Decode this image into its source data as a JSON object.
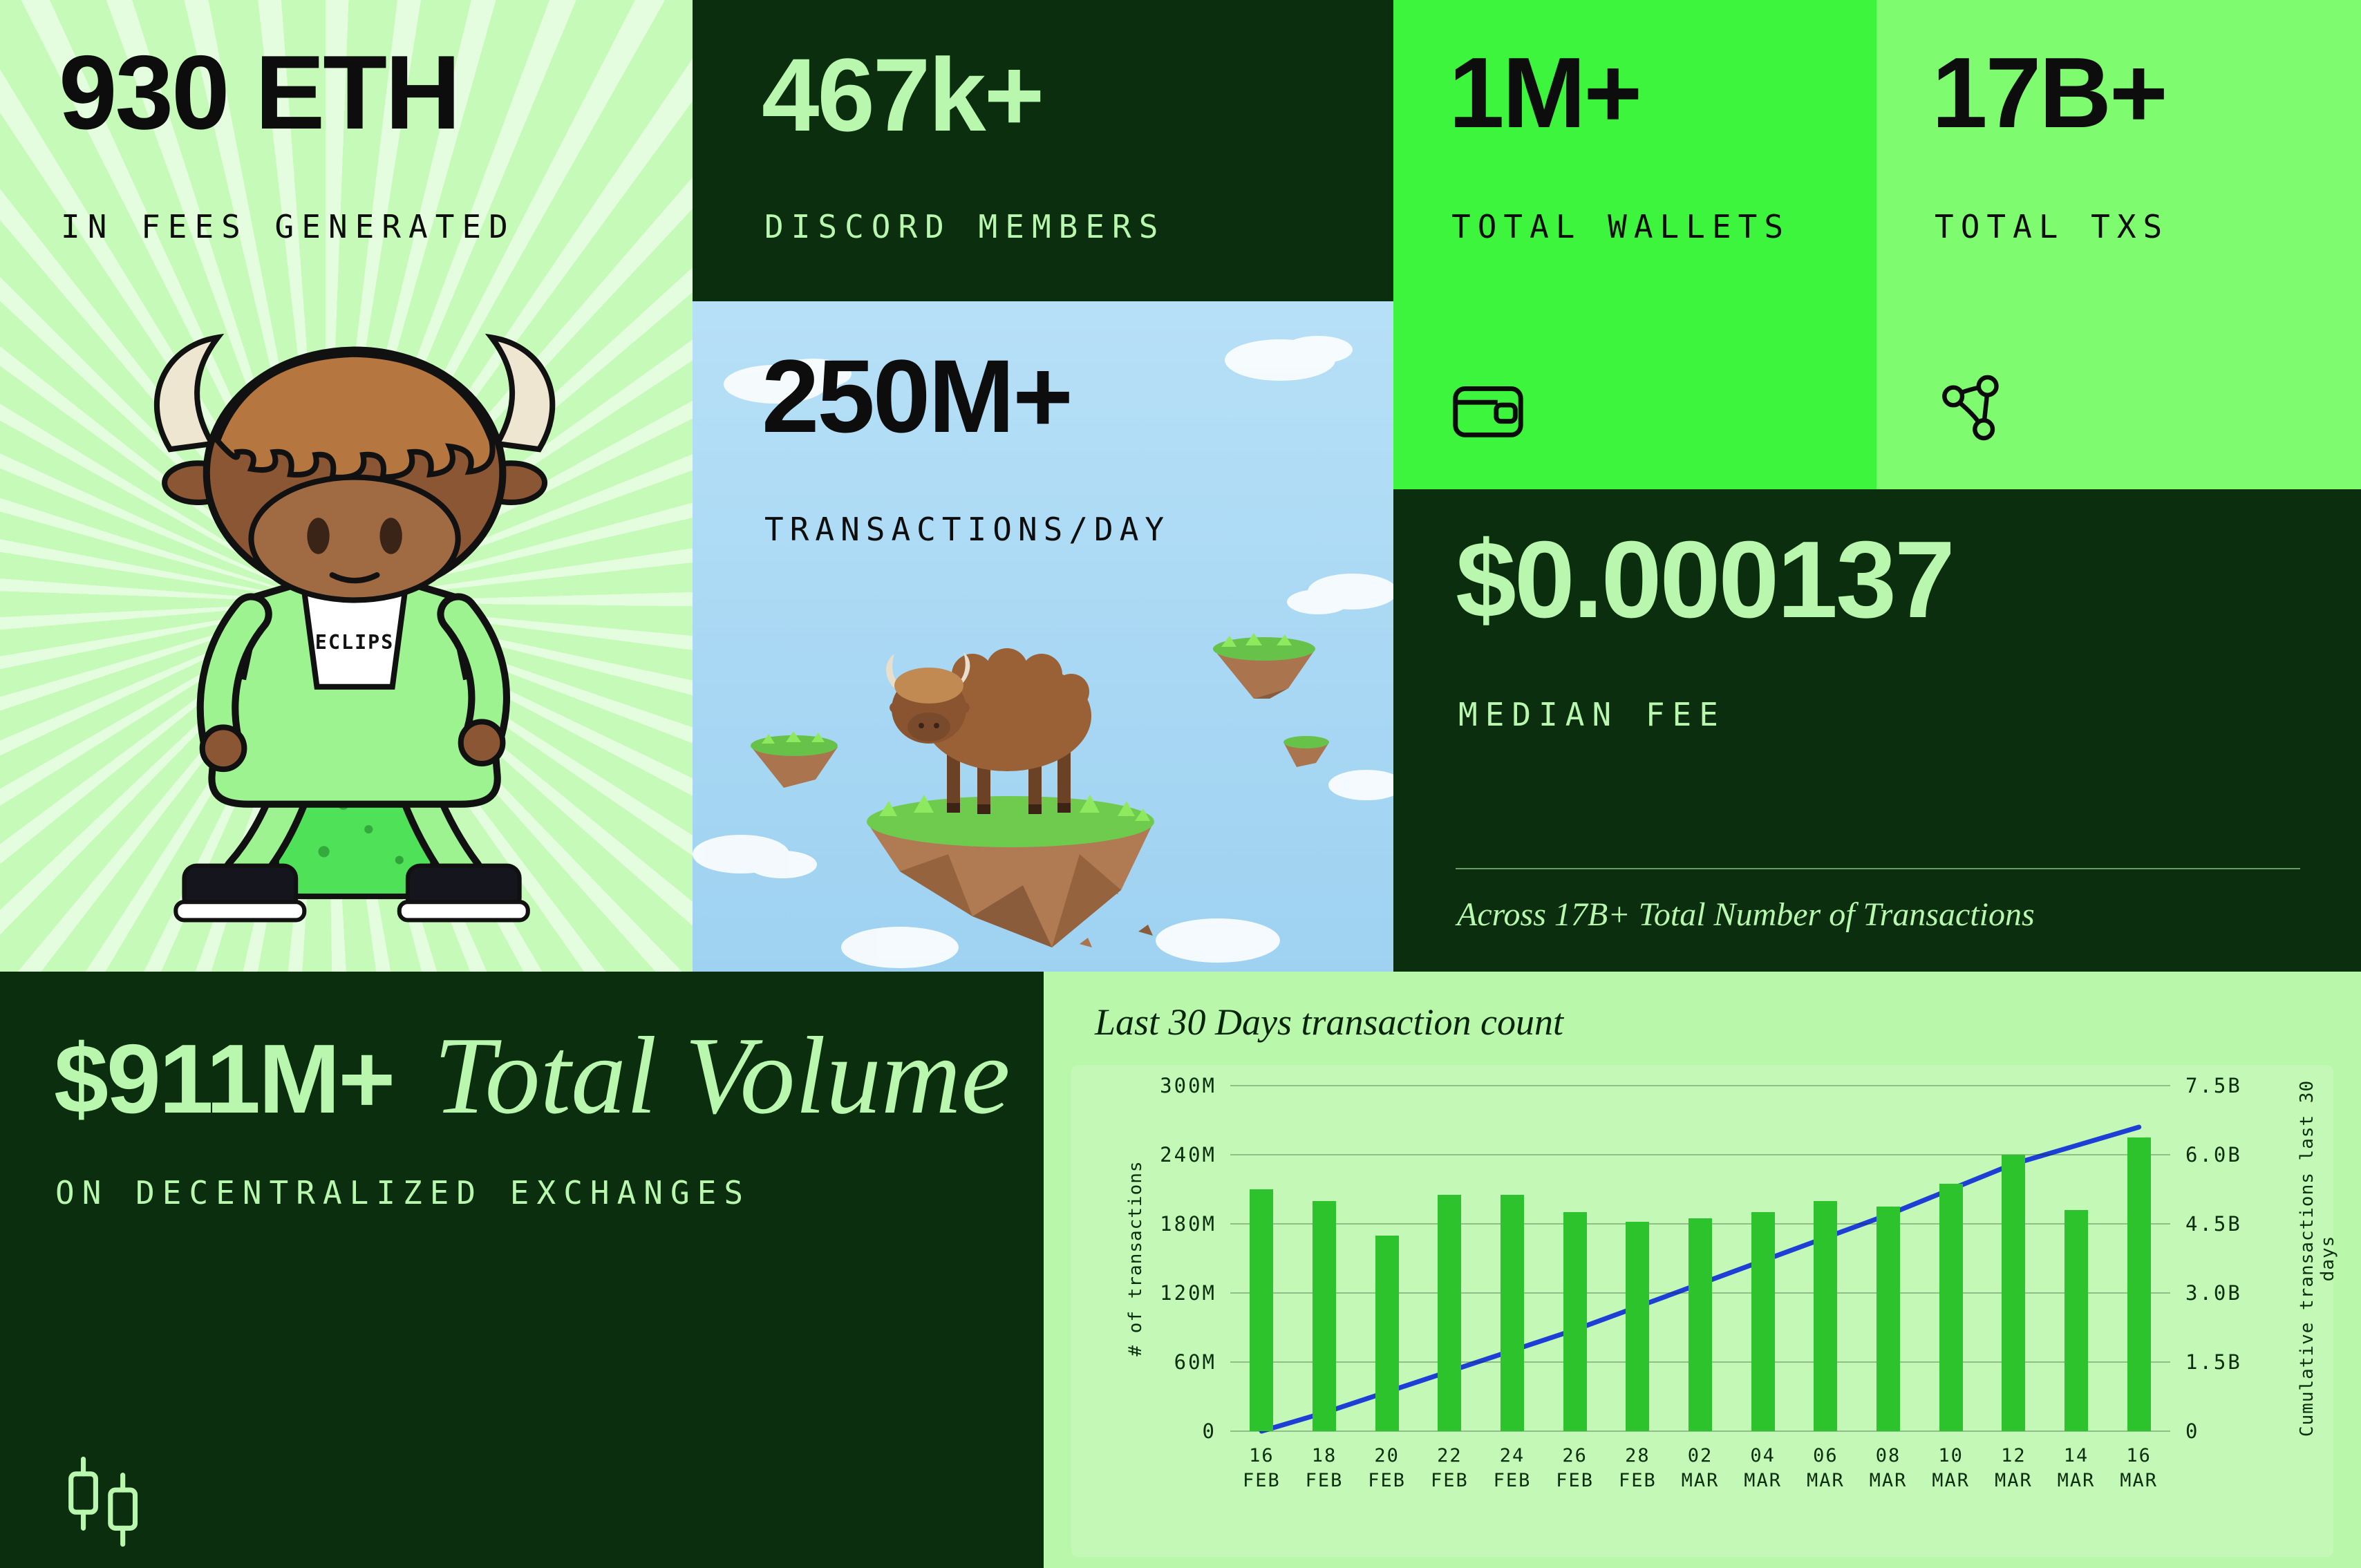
{
  "colors": {
    "dark_green": "#0b2e0e",
    "pale_green": "#c6fab8",
    "chart_panel_green": "#b9f7aa",
    "bright_green": "#3cf53c",
    "mid_green": "#7efb6e",
    "light_text_green": "#b9f7ae",
    "bar_green": "#2cc32c",
    "line_blue": "#1d3fd6",
    "sky_blue": "#aedcf6",
    "black": "#0d0d0d"
  },
  "stats": {
    "fees": {
      "value": "930 ETH",
      "label": "IN FEES GENERATED"
    },
    "discord": {
      "value": "467k+",
      "label": "DISCORD MEMBERS"
    },
    "daily_transactions": {
      "value": "250M+",
      "label": "TRANSACTIONS/DAY"
    },
    "wallets": {
      "value": "1M+",
      "label": "TOTAL WALLETS",
      "icon": "wallet-icon"
    },
    "total_txs": {
      "value": "17B+",
      "label": "TOTAL TXS",
      "icon": "network-nodes-icon"
    },
    "median_fee": {
      "value": "$0.000137",
      "label": "MEDIAN FEE",
      "note": "Across 17B+ Total Number of Transactions"
    },
    "volume": {
      "value": "$911M+",
      "title": "Total Volume",
      "label": "ON DECENTRALIZED EXCHANGES",
      "icon": "candlestick-icon"
    }
  },
  "mascot": {
    "badge_text": "ECLIPS"
  },
  "chart_data": {
    "type": "bar+line",
    "title": "Last 30 Days transaction count",
    "categories": [
      "16 FEB",
      "18 FEB",
      "20 FEB",
      "22 FEB",
      "24 FEB",
      "26 FEB",
      "28 FEB",
      "02 MAR",
      "04 MAR",
      "06 MAR",
      "08 MAR",
      "10 MAR",
      "12 MAR",
      "14 MAR",
      "16 MAR"
    ],
    "series": [
      {
        "name": "# of transactions",
        "type": "bar",
        "axis": "left",
        "unit": "millions",
        "values": [
          210,
          200,
          170,
          205,
          205,
          190,
          182,
          185,
          190,
          200,
          195,
          215,
          240,
          192,
          255
        ],
        "color": "#2cc32c"
      },
      {
        "name": "Cumulative transactions last 30 days",
        "type": "line",
        "axis": "right",
        "unit": "billions",
        "values": [
          0,
          0.4,
          0.85,
          1.3,
          1.75,
          2.2,
          2.7,
          3.2,
          3.7,
          4.2,
          4.7,
          5.25,
          5.8,
          6.2,
          6.6
        ],
        "color": "#1d3fd6"
      }
    ],
    "left_axis": {
      "label": "# of transactions",
      "ticks": [
        "0",
        "60M",
        "120M",
        "180M",
        "240M",
        "300M"
      ],
      "max_millions": 300
    },
    "right_axis": {
      "label": "Cumulative transactions last 30 days",
      "ticks": [
        "0",
        "1.5B",
        "3.0B",
        "4.5B",
        "6.0B",
        "7.5B"
      ],
      "max_billions": 7.5
    },
    "grid": "horizontal",
    "legend": "none"
  }
}
